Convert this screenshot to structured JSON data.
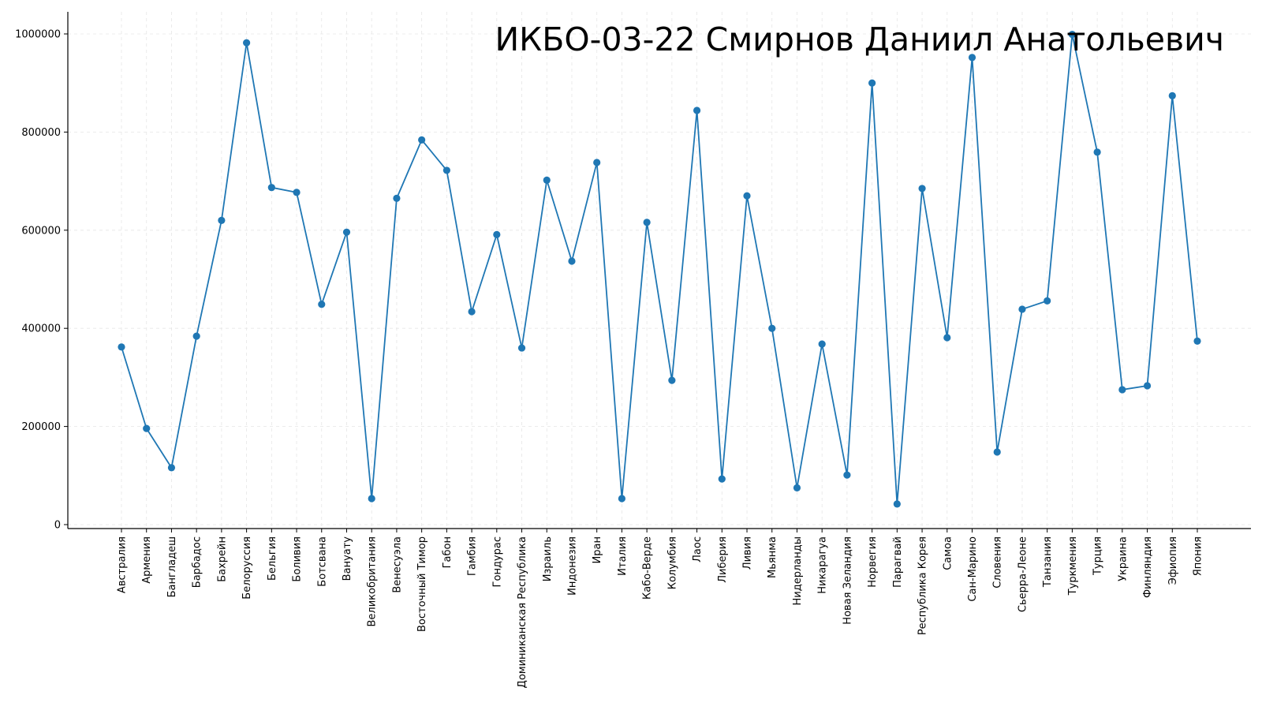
{
  "chart_data": {
    "type": "line",
    "title": "ИКБО-03-22 Смирнов Даниил Анатольевич",
    "xlabel": "",
    "ylabel": "",
    "ylim": [
      0,
      1000000
    ],
    "yticks": [
      0,
      200000,
      400000,
      600000,
      800000,
      1000000
    ],
    "grid": true,
    "line_color": "#1f77b4",
    "categories": [
      "Австралия",
      "Армения",
      "Бангладеш",
      "Барбадос",
      "Бахрейн",
      "Белоруссия",
      "Бельгия",
      "Боливия",
      "Ботсвана",
      "Вануату",
      "Великобритания",
      "Венесуэла",
      "Восточный Тимор",
      "Габон",
      "Гамбия",
      "Гондурас",
      "Доминиканская Республика",
      "Израиль",
      "Индонезия",
      "Иран",
      "Италия",
      "Кабо-Верде",
      "Колумбия",
      "Лаос",
      "Либерия",
      "Ливия",
      "Мьянма",
      "Нидерланды",
      "Никарагуа",
      "Новая Зеландия",
      "Норвегия",
      "Парагвай",
      "Республика Корея",
      "Самоа",
      "Сан-Марино",
      "Словения",
      "Сьерра-Леоне",
      "Танзания",
      "Туркмения",
      "Турция",
      "Украина",
      "Финляндия",
      "Эфиопия",
      "Япония"
    ],
    "series": [
      {
        "values": [
          362000,
          196000,
          116000,
          384000,
          620000,
          982000,
          687000,
          677000,
          449000,
          596000,
          53000,
          665000,
          784000,
          722000,
          434000,
          591000,
          360000,
          702000,
          537000,
          738000,
          53000,
          616000,
          294000,
          844000,
          93000,
          670000,
          400000,
          75000,
          368000,
          101000,
          900000,
          42000,
          685000,
          381000,
          952000,
          148000,
          439000,
          456000,
          999000,
          759000,
          275000,
          283000,
          874000,
          374000
        ]
      }
    ]
  }
}
